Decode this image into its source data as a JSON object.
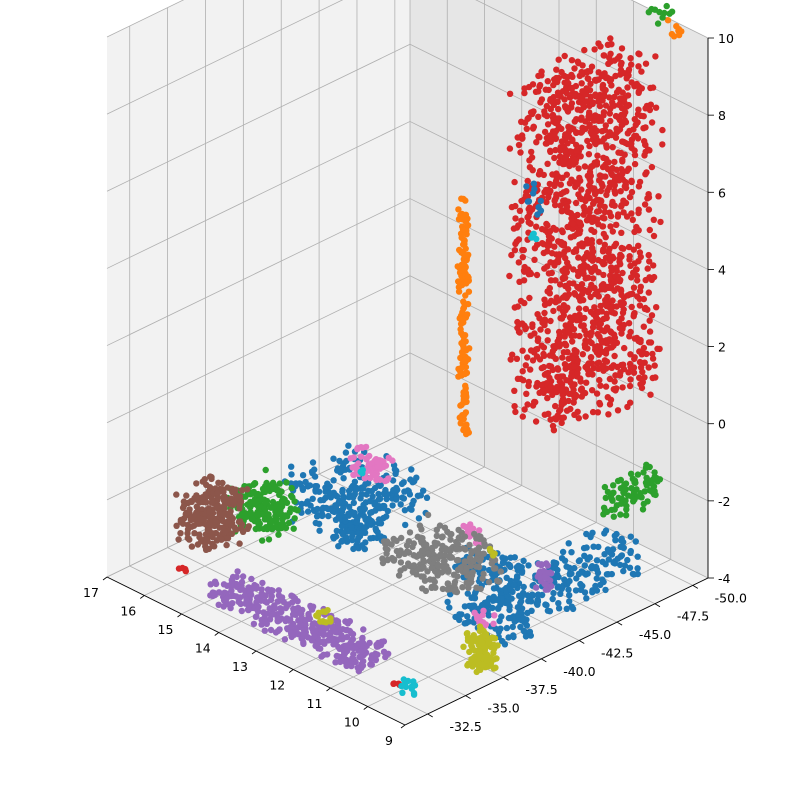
{
  "chart_data": {
    "type": "scatter",
    "title": "",
    "projection": "3d",
    "grid": true,
    "legend": "none",
    "axes": {
      "x": {
        "label": "",
        "range": [
          9,
          17
        ],
        "ticks": [
          17,
          16,
          15,
          14,
          13,
          12,
          11,
          10,
          9
        ]
      },
      "y": {
        "label": "",
        "range": [
          -31,
          -51
        ],
        "ticks": [
          "-32.5",
          "-35.0",
          "-37.5",
          "-40.0",
          "-42.5",
          "-45.0",
          "-47.5",
          "-50.0"
        ]
      },
      "z": {
        "label": "",
        "range": [
          -4,
          10
        ],
        "ticks": [
          -4,
          -2,
          0,
          2,
          4,
          6,
          8,
          10
        ]
      }
    },
    "series": [
      {
        "color": "#d62728",
        "clusters": [
          {
            "x": [
              9.3,
              10.8
            ],
            "y": [
              -42.0,
              -49.0
            ],
            "z": [
              1.0,
              9.8
            ],
            "n": 1400
          },
          {
            "x": [
              16.2,
              16.4
            ],
            "y": [
              -34.0,
              -34.3
            ],
            "z": [
              -4.1,
              -4.0
            ],
            "n": 4
          },
          {
            "x": [
              10.2,
              10.4
            ],
            "y": [
              -33.5,
              -33.7
            ],
            "z": [
              -4.1,
              -4.0
            ],
            "n": 4
          }
        ]
      },
      {
        "color": "#1f77b4",
        "clusters": [
          {
            "x": [
              14.0,
              16.0
            ],
            "y": [
              -40.0,
              -45.0
            ],
            "z": [
              -3.8,
              -2.5
            ],
            "n": 260
          },
          {
            "x": [
              9.5,
              11.0
            ],
            "y": [
              -38.5,
              -41.5
            ],
            "z": [
              -3.8,
              -2.0
            ],
            "n": 220
          },
          {
            "x": [
              9.3,
              10.3
            ],
            "y": [
              -41.5,
              -47.5
            ],
            "z": [
              -3.5,
              -2.5
            ],
            "n": 160
          },
          {
            "x": [
              14.2,
              15.0
            ],
            "y": [
              -40.5,
              -42.5
            ],
            "z": [
              -3.9,
              -3.3
            ],
            "n": 60
          },
          {
            "x": [
              10.0,
              10.3
            ],
            "y": [
              -42.0,
              -42.5
            ],
            "z": [
              6.5,
              7.3
            ],
            "n": 10
          }
        ]
      },
      {
        "color": "#ff7f0e",
        "clusters": [
          {
            "x": [
              12.9,
              13.1
            ],
            "y": [
              -44.5,
              -44.9
            ],
            "z": [
              -1.0,
              5.2
            ],
            "n": 140
          },
          {
            "x": [
              9.8,
              10.1
            ],
            "y": [
              -51.0,
              -51.5
            ],
            "z": [
              9.5,
              10.0
            ],
            "n": 8
          }
        ]
      },
      {
        "color": "#2ca02c",
        "clusters": [
          {
            "x": [
              15.6,
              16.8
            ],
            "y": [
              -38.0,
              -40.5
            ],
            "z": [
              -3.9,
              -2.8
            ],
            "n": 180
          },
          {
            "x": [
              9.0,
              9.3
            ],
            "y": [
              -44.5,
              -48.0
            ],
            "z": [
              -1.5,
              -0.5
            ],
            "n": 80
          },
          {
            "x": [
              10.2,
              10.8
            ],
            "y": [
              -51.0,
              -52.0
            ],
            "z": [
              9.5,
              10.0
            ],
            "n": 10
          }
        ]
      },
      {
        "color": "#8c564b",
        "clusters": [
          {
            "x": [
              16.0,
              17.0
            ],
            "y": [
              -35.5,
              -38.0
            ],
            "z": [
              -3.9,
              -2.6
            ],
            "n": 230
          }
        ]
      },
      {
        "color": "#9467bd",
        "clusters": [
          {
            "x": [
              11.0,
              15.0
            ],
            "y": [
              -32.5,
              -35.0
            ],
            "z": [
              -4.0,
              -3.5
            ],
            "n": 360
          },
          {
            "x": [
              10.3,
              10.6
            ],
            "y": [
              -43.5,
              -43.9
            ],
            "z": [
              -3.6,
              -2.9
            ],
            "n": 30
          }
        ]
      },
      {
        "color": "#e377c2",
        "clusters": [
          {
            "x": [
              14.2,
              15.0
            ],
            "y": [
              -42.0,
              -43.0
            ],
            "z": [
              -2.5,
              -1.8
            ],
            "n": 60
          },
          {
            "x": [
              12.0,
              12.4
            ],
            "y": [
              -43.0,
              -43.6
            ],
            "z": [
              -3.2,
              -2.7
            ],
            "n": 20
          },
          {
            "x": [
              9.6,
              10.0
            ],
            "y": [
              -37.5,
              -38.5
            ],
            "z": [
              -3.5,
              -2.8
            ],
            "n": 20
          }
        ]
      },
      {
        "color": "#7f7f7f",
        "clusters": [
          {
            "x": [
              11.5,
              13.5
            ],
            "y": [
              -40.0,
              -44.0
            ],
            "z": [
              -3.9,
              -3.0
            ],
            "n": 240
          }
        ]
      },
      {
        "color": "#bcbd22",
        "clusters": [
          {
            "x": [
              9.2,
              9.7
            ],
            "y": [
              -36.5,
              -37.8
            ],
            "z": [
              -3.9,
              -3.0
            ],
            "n": 120
          },
          {
            "x": [
              12.6,
              12.9
            ],
            "y": [
              -34.5,
              -35.0
            ],
            "z": [
              -3.9,
              -3.5
            ],
            "n": 12
          },
          {
            "x": [
              11.5,
              11.7
            ],
            "y": [
              -43.0,
              -43.3
            ],
            "z": [
              -3.2,
              -3.0
            ],
            "n": 4
          }
        ]
      },
      {
        "color": "#17becf",
        "clusters": [
          {
            "x": [
              9.6,
              9.9
            ],
            "y": [
              -32.8,
              -33.3
            ],
            "z": [
              -4.0,
              -3.6
            ],
            "n": 12
          },
          {
            "x": [
              14.6,
              14.8
            ],
            "y": [
              -42.0,
              -42.3
            ],
            "z": [
              -2.4,
              -2.2
            ],
            "n": 4
          },
          {
            "x": [
              10.0,
              10.2
            ],
            "y": [
              -42.0,
              -42.3
            ],
            "z": [
              5.9,
              6.1
            ],
            "n": 4
          }
        ]
      }
    ]
  }
}
